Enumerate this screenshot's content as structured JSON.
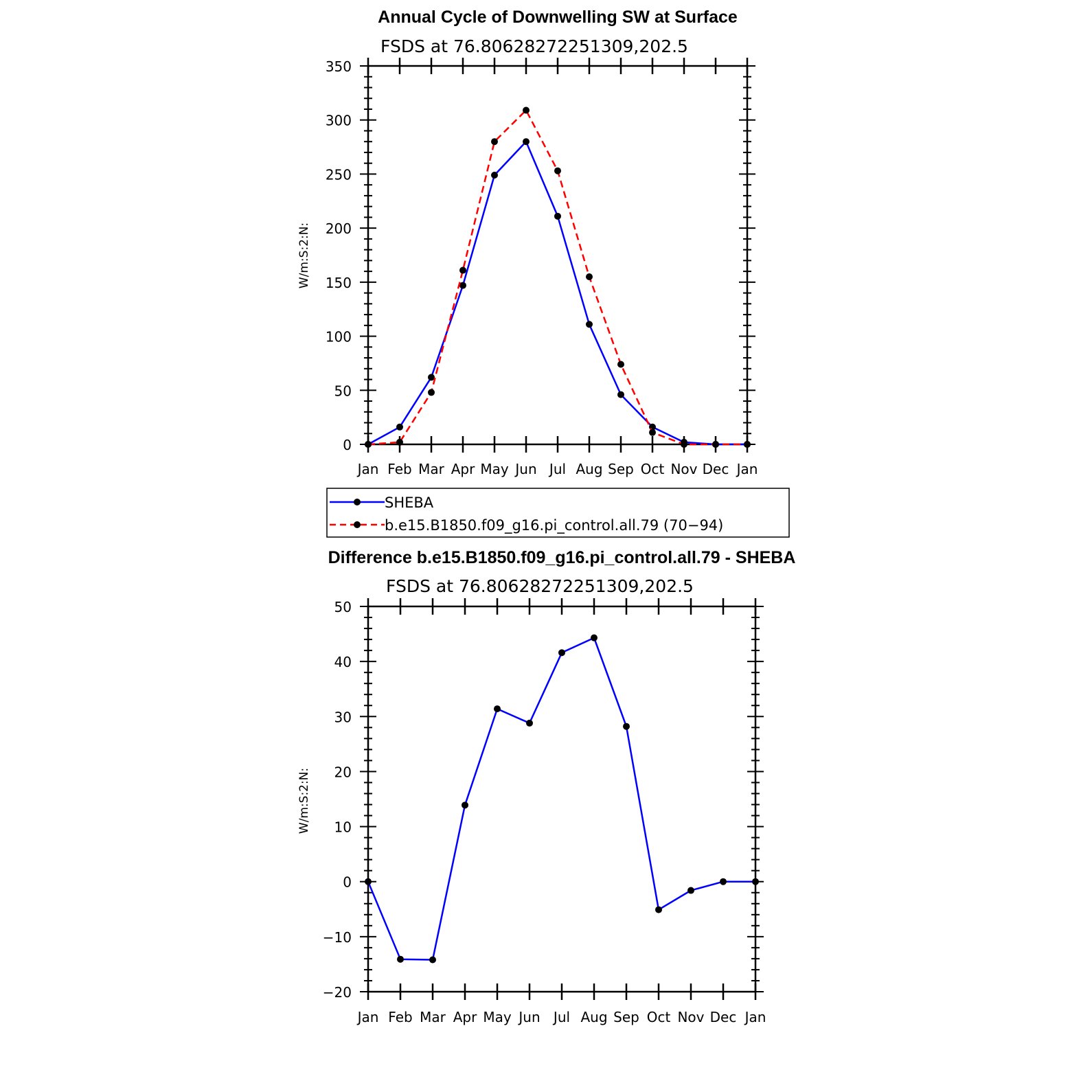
{
  "chart_data": [
    {
      "type": "line",
      "title": "Annual Cycle of Downwelling SW at Surface",
      "subtitle": "FSDS at 76.80628272251309,202.5",
      "ylabel": "W/m:S:2:N:",
      "xlabel": "",
      "categories": [
        "Jan",
        "Feb",
        "Mar",
        "Apr",
        "May",
        "Jun",
        "Jul",
        "Aug",
        "Sep",
        "Oct",
        "Nov",
        "Dec",
        "Jan"
      ],
      "ylim": [
        0,
        350
      ],
      "yticks": [
        0,
        50,
        100,
        150,
        200,
        250,
        300,
        350
      ],
      "ytick_labels": [
        "0",
        "50",
        "100",
        "150",
        "200",
        "250",
        "300",
        "350"
      ],
      "series": [
        {
          "name": "SHEBA",
          "color": "#0000ff",
          "dash": "solid",
          "values": [
            0,
            16,
            62,
            147,
            249,
            280,
            211,
            111,
            46,
            16,
            2,
            0,
            0
          ]
        },
        {
          "name": "b.e15.B1850.f09_g16.pi_control.all.79 (70−94)",
          "color": "#ff0000",
          "dash": "dashed",
          "values": [
            0,
            2,
            48,
            161,
            280,
            309,
            253,
            155,
            74,
            11,
            0,
            0,
            0
          ]
        }
      ],
      "legend_position": "below"
    },
    {
      "type": "line",
      "title": "Difference b.e15.B1850.f09_g16.pi_control.all.79 - SHEBA",
      "subtitle": "FSDS at 76.80628272251309,202.5",
      "ylabel": "W/m:S:2:N:",
      "xlabel": "",
      "categories": [
        "Jan",
        "Feb",
        "Mar",
        "Apr",
        "May",
        "Jun",
        "Jul",
        "Aug",
        "Sep",
        "Oct",
        "Nov",
        "Dec",
        "Jan"
      ],
      "ylim": [
        -20,
        50
      ],
      "yticks": [
        -20,
        -10,
        0,
        10,
        20,
        30,
        40,
        50
      ],
      "ytick_labels": [
        "−20",
        "−10",
        "0",
        "10",
        "20",
        "30",
        "40",
        "50"
      ],
      "series": [
        {
          "name": "Difference",
          "color": "#0000ff",
          "dash": "solid",
          "values": [
            0,
            -14.1,
            -14.2,
            13.9,
            31.4,
            28.8,
            41.6,
            44.3,
            28.2,
            -5.1,
            -1.6,
            0,
            0
          ]
        }
      ]
    }
  ]
}
